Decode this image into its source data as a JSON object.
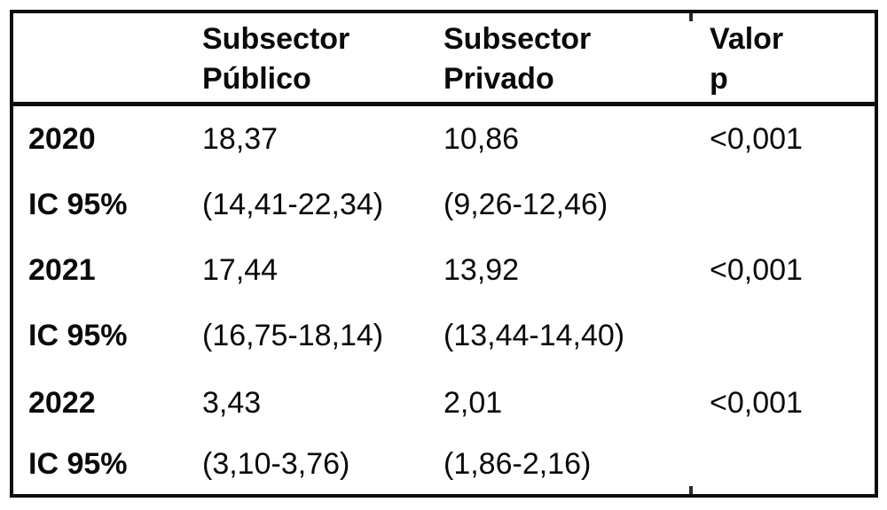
{
  "figure": {
    "background_color": "#ffffff",
    "border_color": "#0d0d0d",
    "text_color": "#0a0a0a"
  },
  "chart_data": {
    "type": "table",
    "columns": [
      "",
      "Subsector Público",
      "Subsector Privado",
      "Valor p"
    ],
    "rows": [
      [
        "2020",
        "18,37",
        "10,86",
        "<0,001"
      ],
      [
        "IC 95%",
        "(14,41-22,34)",
        "(9,26-12,46)",
        ""
      ],
      [
        "2021",
        "17,44",
        "13,92",
        "<0,001"
      ],
      [
        "IC 95%",
        "(16,75-18,14)",
        "(13,44-14,40)",
        ""
      ],
      [
        "2022",
        "3,43",
        "2,01",
        "<0,001"
      ],
      [
        "IC 95%",
        "(3,10-3,76)",
        "(1,86-2,16)",
        ""
      ]
    ],
    "notes": {
      "decimal_separator": "comma",
      "row_label_pattern": "year followed by IC 95% confidence interval row",
      "p_value_shown_only_on_year_rows": true
    }
  }
}
